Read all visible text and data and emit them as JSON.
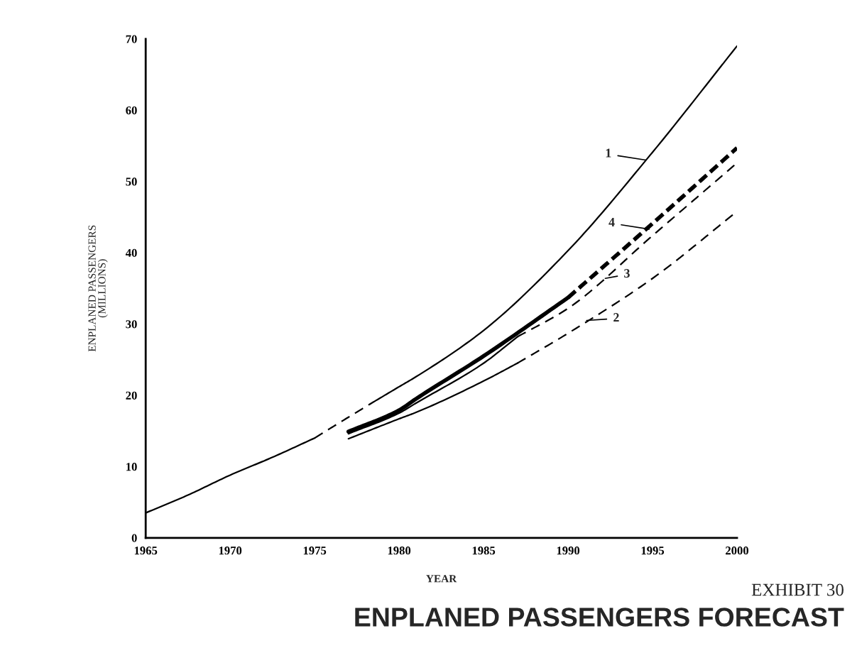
{
  "chart_data": {
    "type": "line",
    "title": "ENPLANED PASSENGERS FORECAST",
    "subtitle": "EXHIBIT 30",
    "xlabel": "YEAR",
    "ylabel": "ENPLANED PASSENGERS\n(MILLIONS)",
    "xlim": [
      1965,
      2000
    ],
    "xticks": [
      1965,
      1970,
      1975,
      1980,
      1985,
      1990,
      1995,
      2000
    ],
    "ylim": [
      0,
      70
    ],
    "yticks": [
      0,
      10,
      20,
      30,
      40,
      50,
      60,
      70
    ],
    "grid": false,
    "legend": false,
    "marker": "none",
    "series": [
      {
        "color": "#000000",
        "line_style": "solid",
        "x": [
          1965,
          1967.5,
          1970,
          1972.5,
          1975
        ],
        "values": [
          3.5,
          6,
          8.8,
          11.3,
          14.0
        ]
      },
      {
        "color": "#000000",
        "line_style": "dashed",
        "x": [
          1975,
          1976.5,
          1978.3
        ],
        "values": [
          14.0,
          16.2,
          18.8
        ]
      },
      {
        "color": "#000000",
        "line_style": "solid",
        "x": [
          1978.3,
          1980,
          1981,
          1985,
          1990,
          1995,
          2000
        ],
        "values": [
          18.8,
          21.2,
          22.6,
          29.1,
          40.3,
          54.1,
          69
        ]
      },
      {
        "color": "#000000",
        "line_style": "solid",
        "x": [
          1977,
          1980,
          1981,
          1985,
          1990
        ],
        "values": [
          14.9,
          17.9,
          19.5,
          25.5,
          33.7
        ]
      },
      {
        "color": "#000000",
        "line_style": "dashed",
        "x": [
          1990,
          1995,
          2000
        ],
        "values": [
          33.7,
          44.1,
          54.7
        ]
      },
      {
        "color": "#000000",
        "line_style": "solid",
        "x": [
          1977,
          1980,
          1981,
          1985,
          1987
        ],
        "values": [
          14.6,
          17.5,
          18.9,
          24.5,
          28.2
        ]
      },
      {
        "color": "#000000",
        "line_style": "dashed",
        "x": [
          1987,
          1990,
          1995,
          2000
        ],
        "values": [
          28.2,
          32.2,
          42.4,
          52.6
        ]
      },
      {
        "color": "#000000",
        "line_style": "solid",
        "x": [
          1977,
          1980,
          1981,
          1985,
          1987
        ],
        "values": [
          13.9,
          16.7,
          17.6,
          22.0,
          24.5
        ]
      },
      {
        "color": "#000000",
        "line_style": "dashed",
        "x": [
          1987,
          1990,
          1995,
          2000
        ],
        "values": [
          24.5,
          28.7,
          36.4,
          45.8
        ]
      }
    ],
    "annotations": [
      {
        "text": "1",
        "x": 1994.6,
        "y": 53
      },
      {
        "text": "4",
        "x": 1994.8,
        "y": 43.3
      },
      {
        "text": "3",
        "x": 1992.2,
        "y": 36.4
      },
      {
        "text": "2",
        "x": 1991.1,
        "y": 30.5
      }
    ]
  }
}
